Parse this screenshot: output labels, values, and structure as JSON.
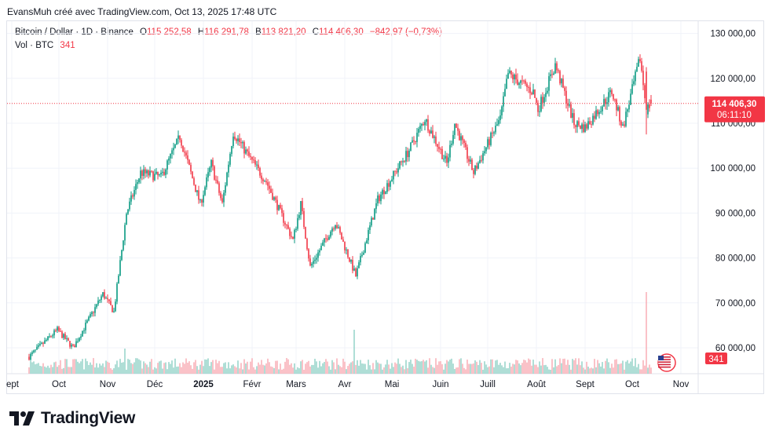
{
  "credit": "EvansMuh créé avec TradingView.com, Oct 13, 2025 17:48 UTC",
  "legend": {
    "symbol": "Bitcoin / Dollar · 1D · Binance",
    "o_label": "O",
    "o_value": "115 252,58",
    "h_label": "H",
    "h_value": "116 291,78",
    "b_label": "B",
    "b_value": "113 821,20",
    "c_label": "C",
    "c_value": "114 406,30",
    "change": "−842,97 (−0,73%)",
    "vol_label": "Vol · BTC",
    "vol_value": "341"
  },
  "badges": {
    "price": "114 406,30",
    "countdown": "06:11:10",
    "volume": "341"
  },
  "brand": "TradingView",
  "colors": {
    "up": "#089981",
    "down": "#f23645",
    "up_volume": "#8dcfc5",
    "down_volume": "#f8a9b0",
    "grid": "#f0f3fa",
    "axis_text": "#131722"
  },
  "chart_data": {
    "type": "candlestick",
    "title": "Bitcoin / Dollar · 1D · Binance",
    "y_ticks": [
      "130 000,00",
      "120 000,00",
      "110 000,00",
      "100 000,00",
      "90 000,00",
      "80 000,00",
      "70 000,00",
      "60 000,00"
    ],
    "ylim": [
      55000,
      132000
    ],
    "x_ticks": [
      "ept",
      "Oct",
      "Nov",
      "Déc",
      "2025",
      "Févr",
      "Mars",
      "Avr",
      "Mai",
      "Juin",
      "Juill",
      "Août",
      "Sept",
      "Oct",
      "Nov"
    ],
    "last_close": 114406.3,
    "grid": true,
    "price_anchors": [
      [
        "2024-09-12",
        58000
      ],
      [
        "2024-09-30",
        64000
      ],
      [
        "2024-10-10",
        60000
      ],
      [
        "2024-10-29",
        72000
      ],
      [
        "2024-11-05",
        68000
      ],
      [
        "2024-11-13",
        90000
      ],
      [
        "2024-11-22",
        99000
      ],
      [
        "2024-12-05",
        98000
      ],
      [
        "2024-12-17",
        107000
      ],
      [
        "2024-12-30",
        92000
      ],
      [
        "2025-01-06",
        101000
      ],
      [
        "2025-01-13",
        92000
      ],
      [
        "2025-01-20",
        108000
      ],
      [
        "2025-01-31",
        102000
      ],
      [
        "2025-02-10",
        97000
      ],
      [
        "2025-02-27",
        84000
      ],
      [
        "2025-03-04",
        92000
      ],
      [
        "2025-03-10",
        78000
      ],
      [
        "2025-03-26",
        88000
      ],
      [
        "2025-04-08",
        76000
      ],
      [
        "2025-04-22",
        93000
      ],
      [
        "2025-05-12",
        104000
      ],
      [
        "2025-05-22",
        111000
      ],
      [
        "2025-06-05",
        101000
      ],
      [
        "2025-06-10",
        110000
      ],
      [
        "2025-06-22",
        99000
      ],
      [
        "2025-07-09",
        111000
      ],
      [
        "2025-07-14",
        121000
      ],
      [
        "2025-07-30",
        117000
      ],
      [
        "2025-08-02",
        113000
      ],
      [
        "2025-08-13",
        123000
      ],
      [
        "2025-08-25",
        110000
      ],
      [
        "2025-09-01",
        109000
      ],
      [
        "2025-09-18",
        117000
      ],
      [
        "2025-09-25",
        109000
      ],
      [
        "2025-10-06",
        124500
      ],
      [
        "2025-10-10",
        113000
      ],
      [
        "2025-10-13",
        114406
      ]
    ],
    "volume_note": "volume bars at bottom; largest spikes near 2025-04-07 and 2025-10-10"
  }
}
